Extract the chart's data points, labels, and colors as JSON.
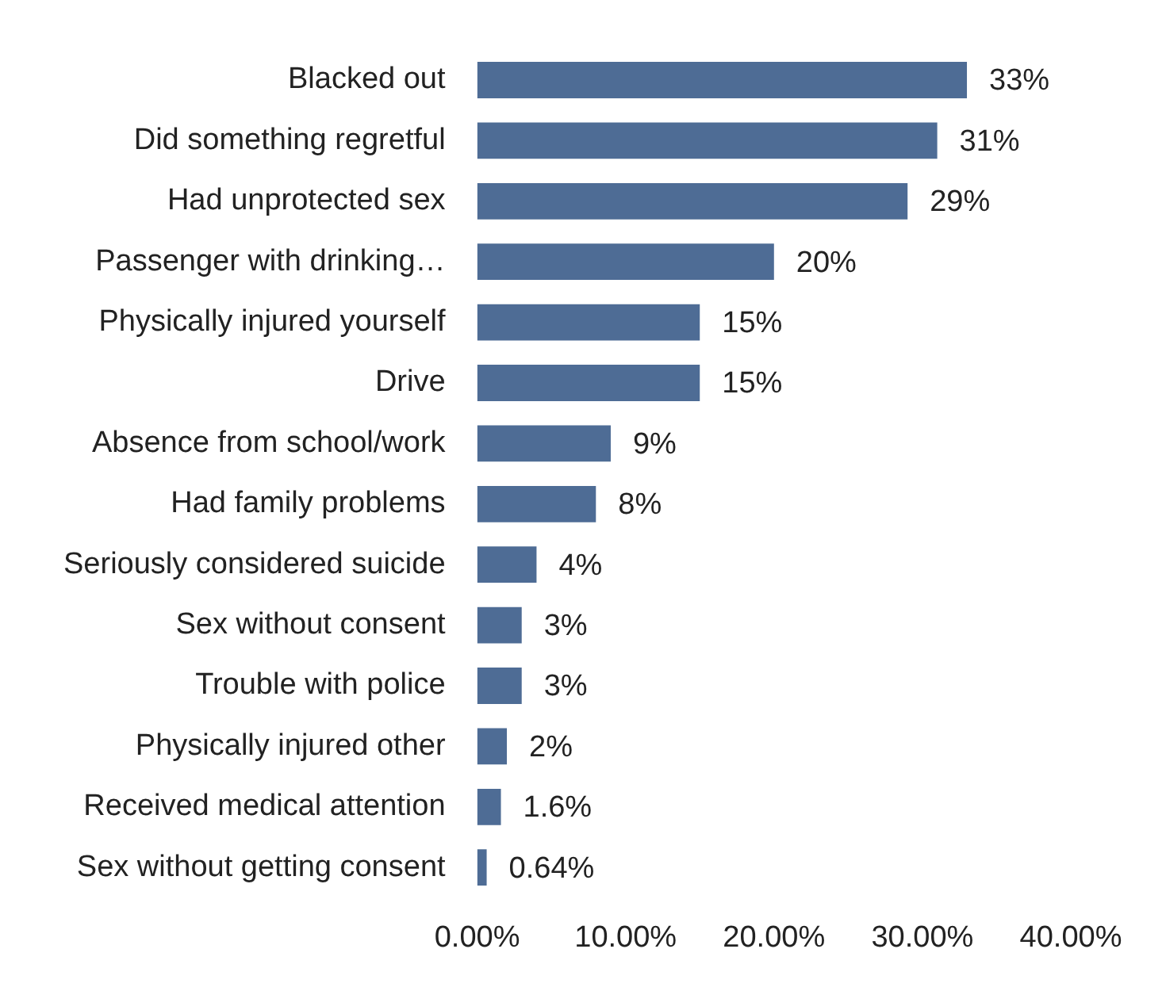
{
  "chart_data": {
    "type": "bar",
    "orientation": "horizontal",
    "categories": [
      "Blacked out",
      "Did something regretful",
      "Had unprotected sex",
      "Passenger with drinking…",
      "Physically injured yourself",
      "Drive",
      "Absence from school/work",
      "Had family problems",
      "Seriously considered suicide",
      "Sex without consent",
      "Trouble with police",
      "Physically injured other",
      "Received medical attention",
      "Sex without getting consent"
    ],
    "values": [
      33,
      31,
      29,
      20,
      15,
      15,
      9,
      8,
      4,
      3,
      3,
      2,
      1.6,
      0.64
    ],
    "value_labels": [
      "33%",
      "31%",
      "29%",
      "20%",
      "15%",
      "15%",
      "9%",
      "8%",
      "4%",
      "3%",
      "3%",
      "2%",
      "1.6%",
      "0.64%"
    ],
    "color": "#4e6c95",
    "xlim": [
      0,
      40
    ],
    "xticks": [
      {
        "value": 0,
        "label": "0.00%"
      },
      {
        "value": 10,
        "label": "10.00%"
      },
      {
        "value": 20,
        "label": "20.00%"
      },
      {
        "value": 30,
        "label": "30.00%"
      },
      {
        "value": 40,
        "label": "40.00%"
      }
    ],
    "grid": false,
    "legend": false
  }
}
